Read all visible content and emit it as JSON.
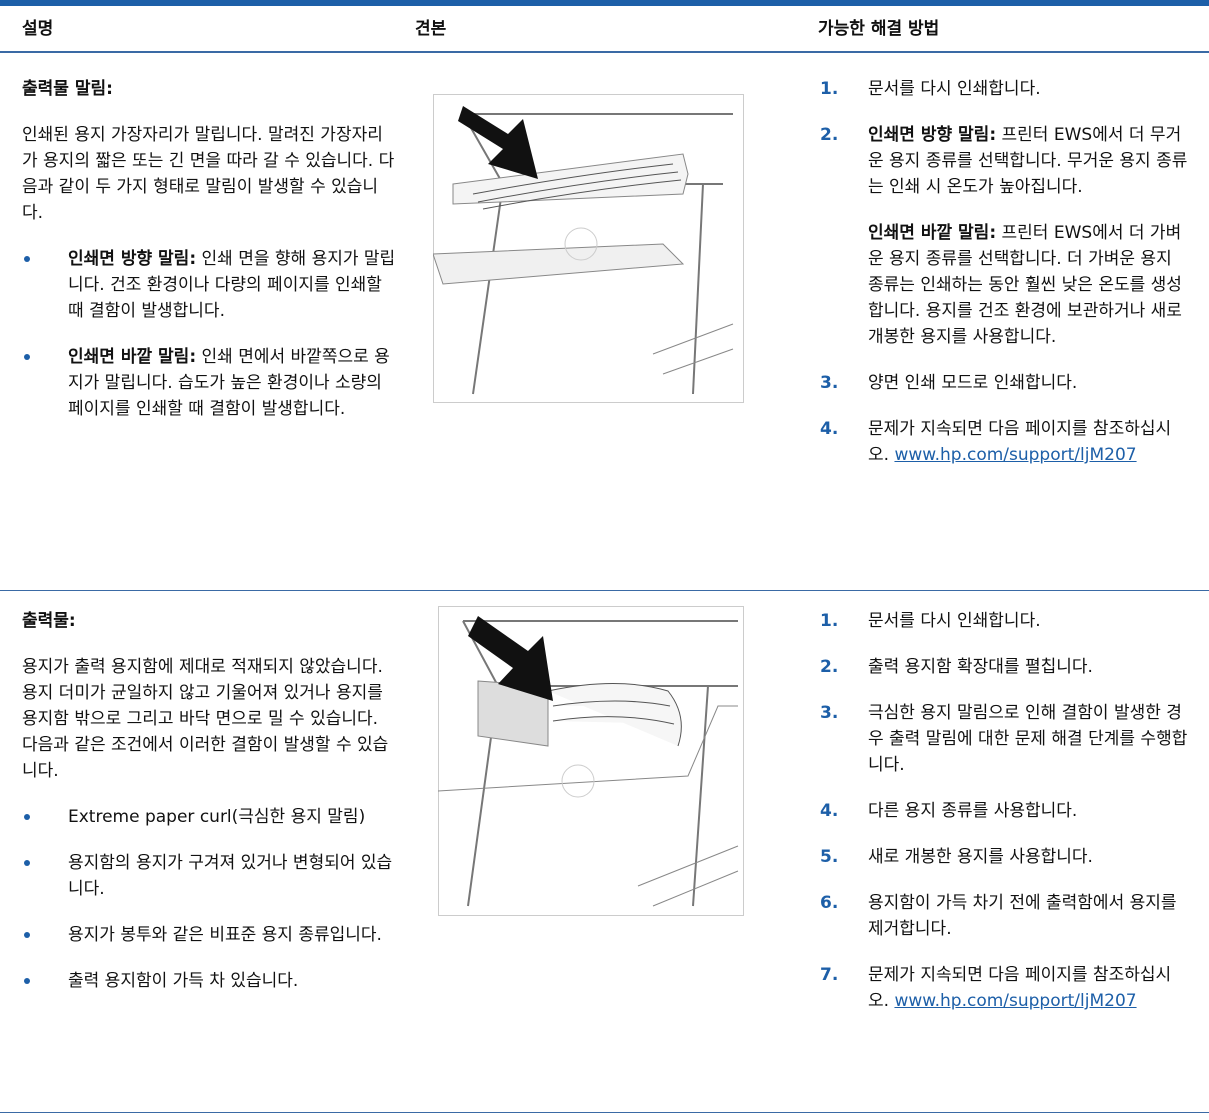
{
  "table": {
    "headers": [
      "설명",
      "견본",
      "가능한 해결 방법"
    ],
    "rows": [
      {
        "title": "출력물 말림:",
        "paragraph": "인쇄된 용지 가장자리가 말립니다. 말려진 가장자리가 용지의 짧은 또는 긴 면을 따라 갈 수 있습니다. 다음과 같이 두 가지 형태로 말림이 발생할 수 있습니다.",
        "bullets": [
          {
            "term": "인쇄면 방향 말림:",
            "text": "인쇄 면을 향해 용지가 말립니다. 건조 환경이나 다량의 페이지를 인쇄할 때 결함이 발생합니다."
          },
          {
            "term": "인쇄면 바깥 말림:",
            "text": "인쇄 면에서 바깥쪽으로 용지가 말립니다. 습도가 높은 환경이나 소량의 페이지를 인쇄할 때 결함이 발생합니다."
          }
        ],
        "steps": [
          {
            "number": "1.",
            "text": "문서를 다시 인쇄합니다."
          },
          {
            "number": "2.",
            "paragraphs": [
              {
                "term": "인쇄면 방향 말림:",
                "text": "프린터 EWS에서 더 무거운 용지 종류를 선택합니다. 무거운 용지 종류는 인쇄 시 온도가 높아집니다."
              },
              {
                "term": "인쇄면 바깥 말림:",
                "text": "프린터 EWS에서 더 가벼운 용지 종류를 선택합니다. 더 가벼운 용지 종류는 인쇄하는 동안 훨씬 낮은 온도를 생성합니다. 용지를 건조 환경에 보관하거나 새로 개봉한 용지를 사용합니다."
              }
            ]
          },
          {
            "number": "3.",
            "text": "양면 인쇄 모드로 인쇄합니다."
          },
          {
            "number": "4.",
            "text": "문제가 지속되면 다음 페이지를 참조하십시오.",
            "link": "www.hp.com/support/ljM207"
          }
        ]
      },
      {
        "title": "출력물:",
        "paragraph": "용지가 출력 용지함에 제대로 적재되지 않았습니다. 용지 더미가 균일하지 않고 기울어져 있거나 용지를 용지함 밖으로 그리고 바닥 면으로 밀 수 있습니다. 다음과 같은 조건에서 이러한 결함이 발생할 수 있습니다.",
        "bullets": [
          {
            "text": "Extreme paper curl(극심한 용지 말림)"
          },
          {
            "text": "용지함의 용지가 구겨져 있거나 변형되어 있습니다."
          },
          {
            "text": "용지가 봉투와 같은 비표준 용지 종류입니다."
          },
          {
            "text": "출력 용지함이 가득 차 있습니다."
          }
        ],
        "steps": [
          {
            "number": "1.",
            "text": "문서를 다시 인쇄합니다."
          },
          {
            "number": "2.",
            "text": "출력 용지함 확장대를 펼칩니다."
          },
          {
            "number": "3.",
            "text": "극심한 용지 말림으로 인해 결함이 발생한 경우 출력 말림에 대한 문제 해결 단계를 수행합니다."
          },
          {
            "number": "4.",
            "text": "다른 용지 종류를 사용합니다."
          },
          {
            "number": "5.",
            "text": "새로 개봉한 용지를 사용합니다."
          },
          {
            "number": "6.",
            "text": "용지함이 가득 차기 전에 출력함에서 용지를 제거합니다."
          },
          {
            "number": "7.",
            "text": "문제가 지속되면 다음 페이지를 참조하십시오.",
            "link": "www.hp.com/support/ljM207"
          }
        ]
      }
    ]
  }
}
